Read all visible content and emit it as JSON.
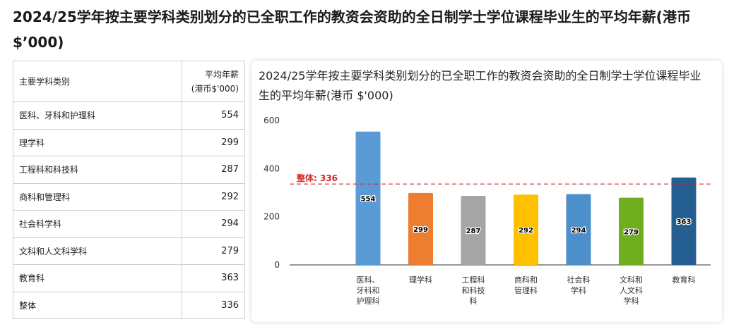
{
  "page": {
    "title": "2024/25学年按主要学科类别划分的已全职工作的教资会资助的全日制学士学位课程毕业生的平均年薪(港币 $’000)"
  },
  "table": {
    "col1_header": "主要学科类别",
    "col2_header_line1": "平均年薪",
    "col2_header_line2": "(港币$'000)",
    "rows": [
      {
        "category": "医科、牙科和护理科",
        "value": "554"
      },
      {
        "category": "理学科",
        "value": "299"
      },
      {
        "category": "工程科和科技科",
        "value": "287"
      },
      {
        "category": "商科和管理科",
        "value": "292"
      },
      {
        "category": "社会科学科",
        "value": "294"
      },
      {
        "category": "文科和人文科学科",
        "value": "279"
      },
      {
        "category": "教育科",
        "value": "363"
      },
      {
        "category": "整体",
        "value": "336"
      }
    ]
  },
  "chart_data": {
    "type": "bar",
    "title": "2024/25学年按主要学科类别划分的已全职工作的教资会资助的全日制学士学位课程毕业生的平均年薪(港币 $'000)",
    "categories": [
      "医科、牙科和护理科",
      "理学科",
      "工程科和科技科",
      "商科和管理科",
      "社会科学科",
      "文科和人文科学科",
      "教育科"
    ],
    "category_tick_lines": [
      [
        "医科、",
        "牙科和",
        "护理科"
      ],
      [
        "理学科"
      ],
      [
        "工程科",
        "和科技",
        "科"
      ],
      [
        "商科和",
        "管理科"
      ],
      [
        "社会科",
        "学科"
      ],
      [
        "文科和",
        "人文科",
        "学科"
      ],
      [
        "教育科"
      ]
    ],
    "values": [
      554,
      299,
      287,
      292,
      294,
      279,
      363
    ],
    "colors": [
      "#5B9BD5",
      "#ED7D31",
      "#A5A5A5",
      "#FFC000",
      "#4C8FCA",
      "#70AD1F",
      "#255E91"
    ],
    "ylim": [
      0,
      600
    ],
    "yticks": [
      0,
      200,
      400,
      600
    ],
    "grid": false,
    "reference_line": {
      "value": 336,
      "label": "整体: 336",
      "color": "#d62728"
    }
  }
}
